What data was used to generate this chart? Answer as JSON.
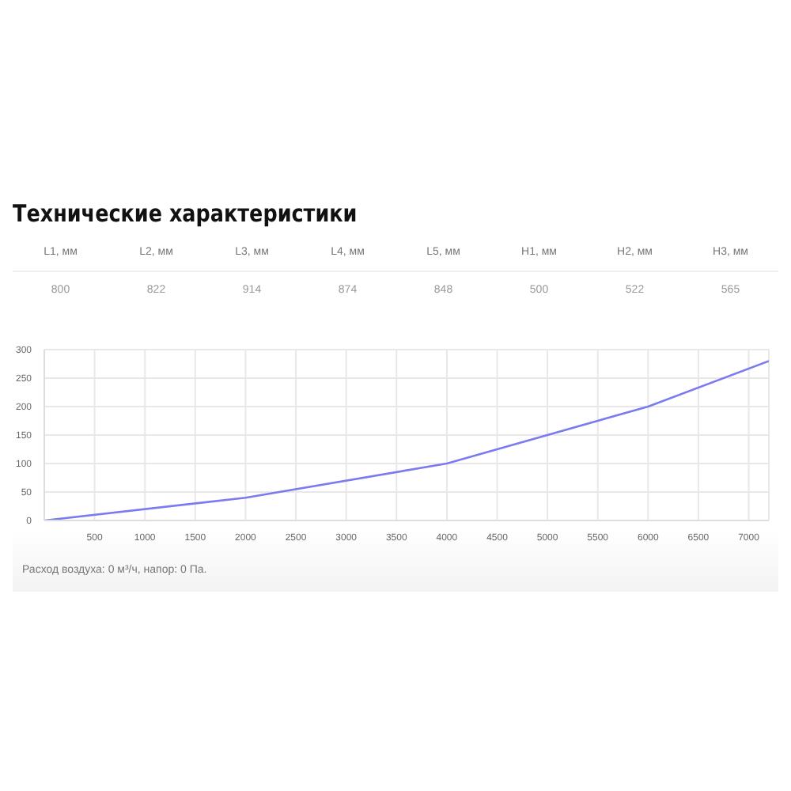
{
  "chart_data": [
    {
      "type": "other",
      "title": "Технические характеристики",
      "categories": [
        "L1, мм",
        "L2, мм",
        "L3, мм",
        "L4, мм",
        "L5, мм",
        "H1, мм",
        "H2, мм",
        "H3, мм"
      ],
      "values": [
        800,
        822,
        914,
        874,
        848,
        500,
        522,
        565
      ],
      "data_labels": true
    },
    {
      "type": "line",
      "x": [
        0,
        2000,
        4000,
        6000,
        7200
      ],
      "series": [
        {
          "color": "#7b7bf0",
          "values": [
            0,
            40,
            100,
            200,
            280
          ]
        }
      ],
      "xlim": [
        0,
        7200
      ],
      "xticks": [
        500,
        1000,
        1500,
        2000,
        2500,
        3000,
        3500,
        4000,
        4500,
        5000,
        5500,
        6000,
        6500,
        7000
      ],
      "ylim": [
        0,
        300
      ],
      "yticks": [
        0,
        50,
        100,
        150,
        200,
        250,
        300
      ],
      "grid": true,
      "marker": "none",
      "line_style": "solid",
      "annotations": [
        "Расход воздуха: 0 м³/ч, напор: 0 Па."
      ]
    }
  ]
}
